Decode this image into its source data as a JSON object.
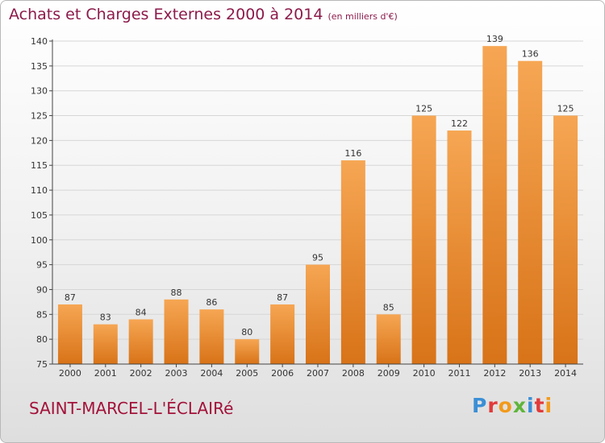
{
  "title": {
    "main": "Achats et Charges Externes 2000 à 2014",
    "sub": "(en milliers d'€)"
  },
  "commune": "SAINT-MARCEL-L'ÉCLAIRé",
  "logo": {
    "text": "Proxiti",
    "colors": [
      "#3a8fd6",
      "#e23a3a",
      "#f29a1a",
      "#5fb53a",
      "#3a8fd6",
      "#e23a3a",
      "#f29a1a"
    ]
  },
  "colors": {
    "bar_light": "#f6a653",
    "bar_dark": "#d87318",
    "title": "#8c1a4a",
    "commune": "#a3123a",
    "grid": "#d6d6d6"
  },
  "chart_data": {
    "type": "bar",
    "categories": [
      "2000",
      "2001",
      "2002",
      "2003",
      "2004",
      "2005",
      "2006",
      "2007",
      "2008",
      "2009",
      "2010",
      "2011",
      "2012",
      "2013",
      "2014"
    ],
    "values": [
      87,
      83,
      84,
      88,
      86,
      80,
      87,
      95,
      116,
      85,
      125,
      122,
      139,
      136,
      125
    ],
    "ylim": [
      75,
      140
    ],
    "yticks": [
      75,
      80,
      85,
      90,
      95,
      100,
      105,
      110,
      115,
      120,
      125,
      130,
      135,
      140
    ],
    "grid": true,
    "data_labels": true
  }
}
